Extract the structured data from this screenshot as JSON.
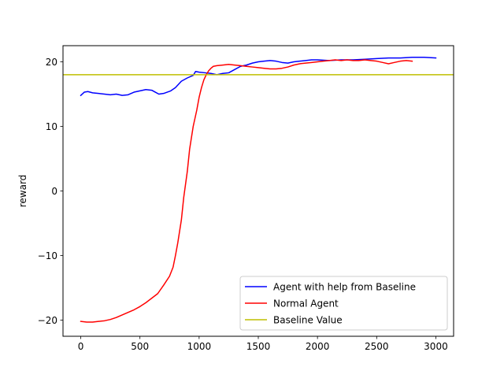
{
  "chart_data": {
    "type": "line",
    "title": "",
    "xlabel": "",
    "ylabel": "reward",
    "xlim": [
      -150,
      3150
    ],
    "ylim": [
      -22.5,
      22.5
    ],
    "xticks": [
      0,
      500,
      1000,
      1500,
      2000,
      2500,
      3000
    ],
    "yticks": [
      -20,
      -10,
      0,
      10,
      20
    ],
    "xtick_labels": [
      "0",
      "500",
      "1000",
      "1500",
      "2000",
      "2500",
      "3000"
    ],
    "ytick_labels": [
      "−20",
      "−10",
      "0",
      "10",
      "20"
    ],
    "grid": false,
    "legend_position": "lower-right",
    "series": [
      {
        "name": "Agent with help from Baseline",
        "color": "#0000ff",
        "x": [
          0,
          30,
          60,
          100,
          150,
          200,
          250,
          300,
          350,
          400,
          450,
          500,
          550,
          600,
          630,
          660,
          700,
          760,
          800,
          850,
          900,
          950,
          970,
          1000,
          1050,
          1100,
          1150,
          1200,
          1250,
          1300,
          1350,
          1400,
          1450,
          1500,
          1550,
          1600,
          1650,
          1700,
          1750,
          1800,
          1850,
          1900,
          1950,
          2000,
          2100,
          2200,
          2300,
          2400,
          2500,
          2600,
          2700,
          2800,
          2900,
          3000
        ],
        "y": [
          14.8,
          15.3,
          15.4,
          15.2,
          15.1,
          15.0,
          14.9,
          15.0,
          14.8,
          14.9,
          15.3,
          15.5,
          15.7,
          15.6,
          15.3,
          15.0,
          15.1,
          15.5,
          16.0,
          17.0,
          17.5,
          17.9,
          18.5,
          18.4,
          18.3,
          18.2,
          18.0,
          18.2,
          18.3,
          18.8,
          19.3,
          19.5,
          19.8,
          20.0,
          20.1,
          20.2,
          20.1,
          19.9,
          19.8,
          20.0,
          20.1,
          20.2,
          20.3,
          20.3,
          20.2,
          20.3,
          20.3,
          20.4,
          20.5,
          20.6,
          20.6,
          20.7,
          20.7,
          20.6
        ]
      },
      {
        "name": "Normal Agent",
        "color": "#ff0000",
        "x": [
          0,
          50,
          100,
          150,
          200,
          250,
          300,
          350,
          400,
          450,
          500,
          550,
          600,
          650,
          700,
          750,
          780,
          800,
          820,
          850,
          870,
          900,
          920,
          950,
          980,
          1000,
          1020,
          1040,
          1060,
          1080,
          1100,
          1120,
          1150,
          1200,
          1250,
          1300,
          1350,
          1400,
          1450,
          1500,
          1550,
          1600,
          1650,
          1700,
          1750,
          1800,
          1850,
          1900,
          1950,
          2000,
          2050,
          2100,
          2150,
          2200,
          2250,
          2300,
          2350,
          2400,
          2450,
          2500,
          2550,
          2600,
          2650,
          2700,
          2750,
          2800
        ],
        "y": [
          -20.2,
          -20.3,
          -20.3,
          -20.2,
          -20.1,
          -19.9,
          -19.6,
          -19.2,
          -18.8,
          -18.4,
          -17.9,
          -17.3,
          -16.6,
          -15.9,
          -14.6,
          -13.2,
          -11.8,
          -10.0,
          -8.0,
          -4.5,
          -1.0,
          3.0,
          6.5,
          10.0,
          12.5,
          14.5,
          16.0,
          17.2,
          18.0,
          18.6,
          19.0,
          19.3,
          19.4,
          19.5,
          19.6,
          19.5,
          19.4,
          19.3,
          19.2,
          19.1,
          19.0,
          18.9,
          18.9,
          19.0,
          19.2,
          19.5,
          19.7,
          19.8,
          19.9,
          20.0,
          20.1,
          20.2,
          20.3,
          20.2,
          20.3,
          20.2,
          20.2,
          20.3,
          20.2,
          20.1,
          19.9,
          19.7,
          19.9,
          20.1,
          20.2,
          20.1
        ]
      },
      {
        "name": "Baseline Value",
        "color": "#bfbf00",
        "x": [
          -150,
          3150
        ],
        "y": [
          18,
          18
        ]
      }
    ]
  }
}
